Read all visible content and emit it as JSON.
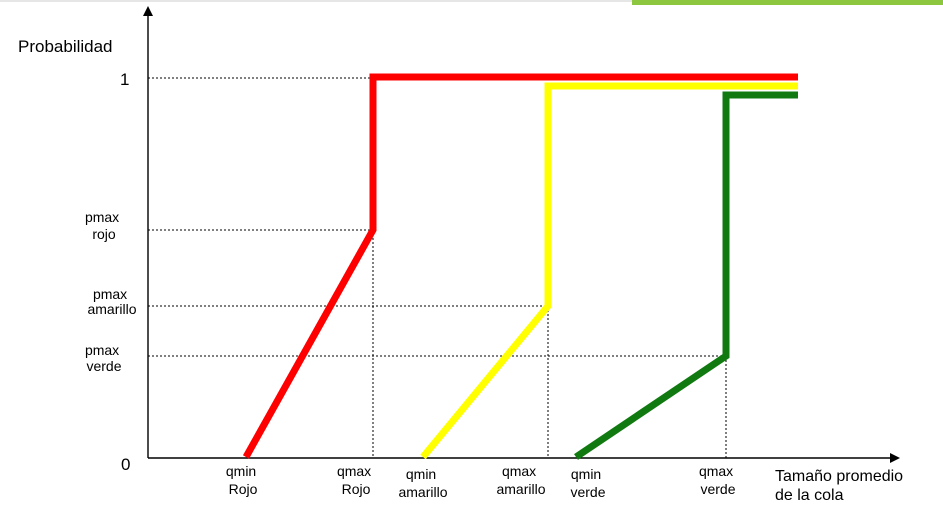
{
  "diagram": {
    "y_axis_label": "Probabilidad",
    "x_axis_label": [
      "Tamaño promedio",
      "de la cola"
    ],
    "y_ticks": {
      "one": "1",
      "zero": "0",
      "pmax_rojo": [
        "pmax",
        "rojo"
      ],
      "pmax_amarillo": [
        "pmax",
        "amarillo"
      ],
      "pmax_verde": [
        "pmax",
        "verde"
      ]
    },
    "x_ticks": {
      "qmin_rojo": [
        "qmin",
        "Rojo"
      ],
      "qmax_rojo": [
        "qmax",
        "Rojo"
      ],
      "qmin_amarillo": [
        "qmin",
        "amarillo"
      ],
      "qmax_amarillo": [
        "qmax",
        "amarillo"
      ],
      "qmin_verde": [
        "qmin",
        "verde"
      ],
      "qmax_verde": [
        "qmax",
        "verde"
      ]
    },
    "colors": {
      "rojo": "#ff0000",
      "amarillo": "#ffff00",
      "verde": "#107a10",
      "top_accent": "#8dc63f"
    }
  }
}
